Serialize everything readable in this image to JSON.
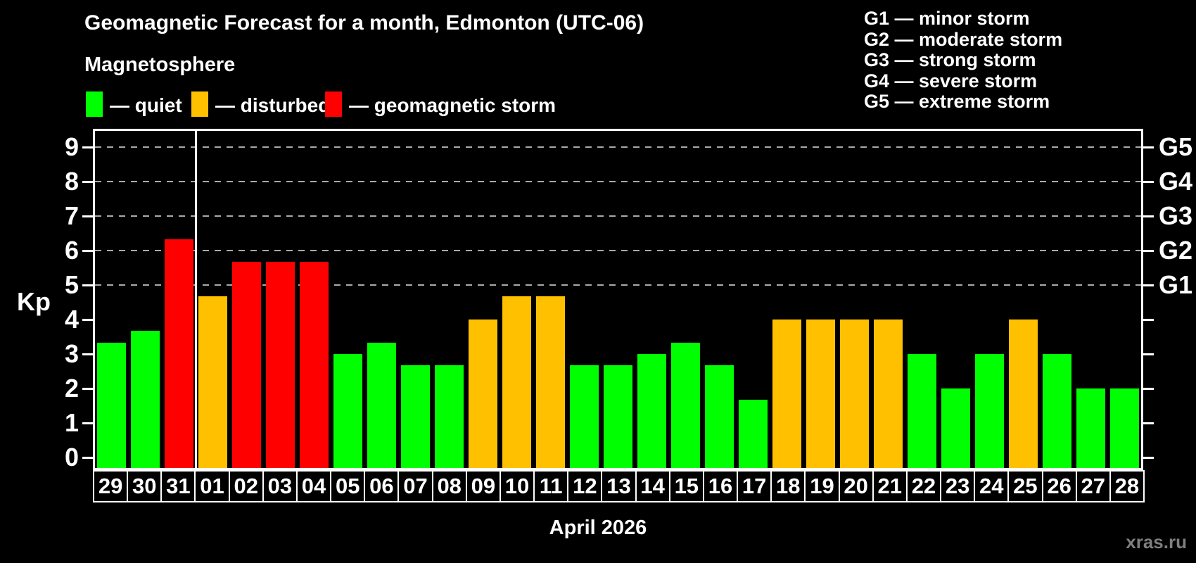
{
  "header": {
    "title": "Geomagnetic Forecast for a month, Edmonton (UTC-06)",
    "subtitle": "Magnetosphere"
  },
  "magnetosphere_legend": [
    {
      "name": "quiet",
      "dash": "—",
      "label": "quiet",
      "color": "#00ff00"
    },
    {
      "name": "disturbed",
      "dash": "—",
      "label": "disturbed",
      "color": "#ffc000"
    },
    {
      "name": "storm",
      "dash": "—",
      "label": "geomagnetic storm",
      "color": "#ff0000"
    }
  ],
  "storm_scale_legend": [
    "G1 — minor storm",
    "G2 — moderate storm",
    "G3 — strong storm",
    "G4 — severe storm",
    "G5 — extreme storm"
  ],
  "chart_data": {
    "type": "bar",
    "title": "Geomagnetic Forecast for a month, Edmonton (UTC-06)",
    "xlabel": "April 2026",
    "ylabel": "Kp",
    "ylim": [
      0,
      9
    ],
    "y_ticks": [
      0,
      1,
      2,
      3,
      4,
      5,
      6,
      7,
      8,
      9
    ],
    "gridlines_at": [
      5,
      6,
      7,
      8,
      9
    ],
    "grid_style": "dashed",
    "legend_position": "top-left",
    "right_axis_labels": [
      {
        "label": "G1",
        "value": 5
      },
      {
        "label": "G2",
        "value": 6
      },
      {
        "label": "G3",
        "value": 7
      },
      {
        "label": "G4",
        "value": 8
      },
      {
        "label": "G5",
        "value": 9
      }
    ],
    "categories": [
      "29",
      "30",
      "31",
      "01",
      "02",
      "03",
      "04",
      "05",
      "06",
      "07",
      "08",
      "09",
      "10",
      "11",
      "12",
      "13",
      "14",
      "15",
      "16",
      "17",
      "18",
      "19",
      "20",
      "21",
      "22",
      "23",
      "24",
      "25",
      "26",
      "27",
      "28"
    ],
    "values": [
      3.33,
      3.67,
      6.33,
      4.67,
      5.67,
      5.67,
      5.67,
      3.0,
      3.33,
      2.67,
      2.67,
      4.0,
      4.67,
      4.67,
      2.67,
      2.67,
      3.0,
      3.33,
      2.67,
      1.67,
      4.0,
      4.0,
      4.0,
      4.0,
      3.0,
      2.0,
      3.0,
      4.0,
      3.0,
      2.0,
      2.0
    ],
    "levels": [
      "quiet",
      "quiet",
      "storm",
      "disturbed",
      "storm",
      "storm",
      "storm",
      "quiet",
      "quiet",
      "quiet",
      "quiet",
      "disturbed",
      "disturbed",
      "disturbed",
      "quiet",
      "quiet",
      "quiet",
      "quiet",
      "quiet",
      "quiet",
      "disturbed",
      "disturbed",
      "disturbed",
      "disturbed",
      "quiet",
      "quiet",
      "quiet",
      "disturbed",
      "quiet",
      "quiet",
      "quiet"
    ],
    "level_colors": {
      "quiet": "#00ff00",
      "disturbed": "#ffc000",
      "storm": "#ff0000"
    },
    "month_separator_after": "31"
  },
  "footer": {
    "month_label": "April 2026",
    "watermark": "xras.ru"
  }
}
